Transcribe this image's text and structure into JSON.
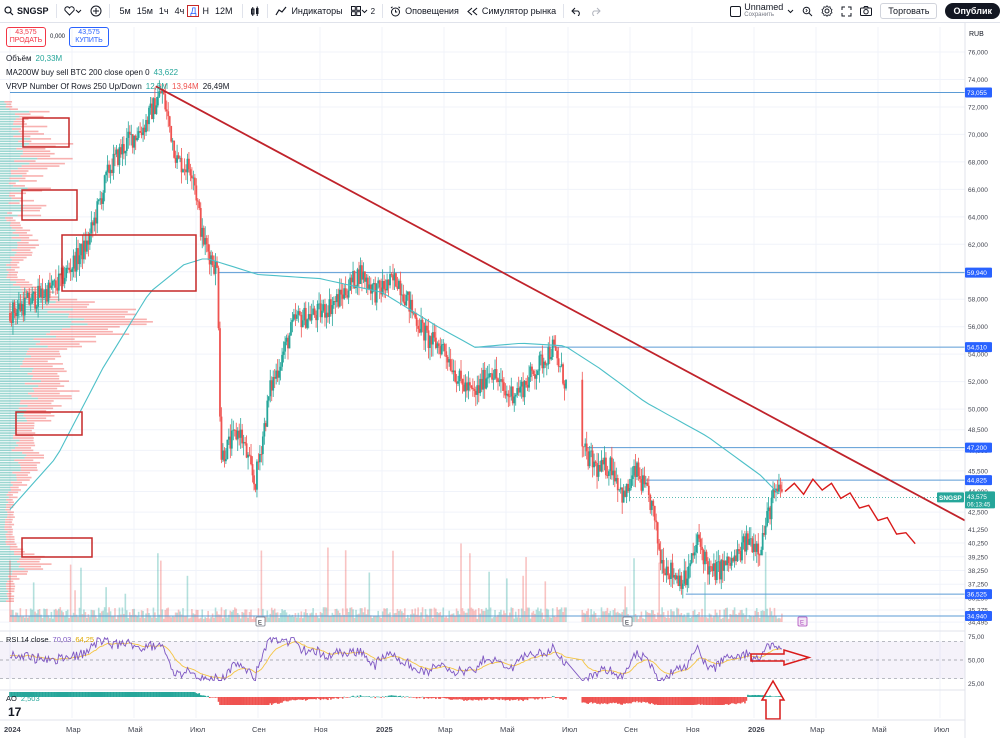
{
  "toolbar": {
    "symbol": "SNGSP",
    "intervals": [
      "5м",
      "15м",
      "1ч",
      "4ч",
      "Д",
      "Н",
      "12М"
    ],
    "active_interval": "Д",
    "indicators_label": "Индикаторы",
    "layouts_count": "2",
    "alerts_label": "Оповещения",
    "replay_label": "Симулятор рынка",
    "layout_name": "Unnamed",
    "saved_label": "Сохранить",
    "trade_label": "Торговать",
    "publish_label": "Опублик"
  },
  "quote": {
    "sell_price": "43,575",
    "sell_label": "ПРОДАТЬ",
    "spread": "0,000",
    "buy_price": "43,575",
    "buy_label": "КУПИТЬ"
  },
  "legends": {
    "volume": {
      "name": "Объём",
      "value": "20,33M"
    },
    "ma": {
      "name": "MA200W buy sell BTC 200 close open 0",
      "value": "43,622"
    },
    "vrvp": {
      "name": "VRVP Number Of Rows 250 Up/Down",
      "v1": "12,5M",
      "v2": "13,94M",
      "v3": "26,49M"
    },
    "rsi": {
      "name": "RSI 14 close",
      "v1": "70,03",
      "v2": "64,25"
    },
    "ao": {
      "name": "AO",
      "value": "2,503"
    }
  },
  "colors": {
    "up": "#26a69a",
    "down": "#ef5350",
    "ma": "#4dc0c8",
    "trend": "#c0232b",
    "level": "#5b9bd5",
    "rsi": "#7e57c2",
    "rsi_ma": "#f5c542",
    "badge": "#2962ff",
    "price_badge": "#26a69a"
  },
  "chart_data": {
    "type": "candlestick",
    "currency": "RUB",
    "x_ticks": [
      "2024",
      "Мар",
      "Май",
      "Июл",
      "Сен",
      "Ноя",
      "2025",
      "Мар",
      "Май",
      "Июл",
      "Сен",
      "Ноя",
      "2026",
      "Мар",
      "Май",
      "Июл"
    ],
    "y_ticks": [
      "76,000",
      "74,000",
      "72,000",
      "70,000",
      "68,000",
      "66,000",
      "64,000",
      "62,000",
      "60,000",
      "58,000",
      "56,000",
      "54,000",
      "52,000",
      "50,000",
      "48,500",
      "47,000",
      "45,500",
      "44,000",
      "42,500",
      "41,250",
      "40,250",
      "39,250",
      "38,250",
      "37,250",
      "36,250",
      "35,375",
      "34,495"
    ],
    "ylim": [
      34.5,
      76
    ],
    "price_path": [
      [
        0,
        57.0
      ],
      [
        1.5,
        59.0
      ],
      [
        2.5,
        62.0
      ],
      [
        3.2,
        67.5
      ],
      [
        3.8,
        69.5
      ],
      [
        4.3,
        70.5
      ],
      [
        4.9,
        73.2
      ],
      [
        5.4,
        68.0
      ],
      [
        5.9,
        67.5
      ],
      [
        6.2,
        62.5
      ],
      [
        6.7,
        60.0
      ],
      [
        6.8,
        46.5
      ],
      [
        7.4,
        48.5
      ],
      [
        7.9,
        44.5
      ],
      [
        8.4,
        51.5
      ],
      [
        9.2,
        56.5
      ],
      [
        10.0,
        57.0
      ],
      [
        10.6,
        58.0
      ],
      [
        11.3,
        60.0
      ],
      [
        11.8,
        58.5
      ],
      [
        12.5,
        59.5
      ],
      [
        13.0,
        57.0
      ],
      [
        13.5,
        55.0
      ],
      [
        14.0,
        54.5
      ],
      [
        14.5,
        52.0
      ],
      [
        15.0,
        51.0
      ],
      [
        15.5,
        53.0
      ],
      [
        16.0,
        51.0
      ],
      [
        16.5,
        51.5
      ],
      [
        17.0,
        53.0
      ],
      [
        17.5,
        54.5
      ],
      [
        17.9,
        52.0
      ],
      [
        18.2,
        50.5
      ],
      [
        18.4,
        52.0
      ],
      [
        18.45,
        47.0
      ],
      [
        19.0,
        45.5
      ],
      [
        19.4,
        46.0
      ],
      [
        19.8,
        43.5
      ],
      [
        20.2,
        45.5
      ],
      [
        20.7,
        43.0
      ],
      [
        21.0,
        39.0
      ],
      [
        21.4,
        38.0
      ],
      [
        21.8,
        37.5
      ],
      [
        22.2,
        40.5
      ],
      [
        22.6,
        38.0
      ],
      [
        23.0,
        38.5
      ],
      [
        23.4,
        39.0
      ],
      [
        23.8,
        40.5
      ],
      [
        24.2,
        40.0
      ],
      [
        24.6,
        43.5
      ],
      [
        24.9,
        44.2
      ]
    ],
    "ma200w_path": [
      [
        0,
        42.7
      ],
      [
        1.5,
        46.5
      ],
      [
        3.0,
        53.0
      ],
      [
        4.5,
        58.5
      ],
      [
        5.6,
        60.5
      ],
      [
        6.3,
        61.0
      ],
      [
        8.0,
        59.8
      ],
      [
        10.0,
        59.5
      ],
      [
        12.0,
        58.5
      ],
      [
        13.8,
        56.0
      ],
      [
        15.0,
        54.5
      ],
      [
        16.5,
        54.8
      ],
      [
        17.9,
        54.6
      ],
      [
        19.0,
        53.0
      ],
      [
        20.5,
        50.5
      ],
      [
        22.5,
        48.0
      ],
      [
        24.2,
        45.2
      ],
      [
        24.9,
        43.6
      ]
    ],
    "trendline": [
      [
        4.7,
        73.5
      ],
      [
        32.2,
        40.2
      ]
    ],
    "forecast_path": [
      [
        25.0,
        44.0
      ],
      [
        25.3,
        44.6
      ],
      [
        25.6,
        43.8
      ],
      [
        25.9,
        44.9
      ],
      [
        26.2,
        44.1
      ],
      [
        26.5,
        44.6
      ],
      [
        26.8,
        43.5
      ],
      [
        27.1,
        43.9
      ],
      [
        27.4,
        42.8
      ],
      [
        27.7,
        43.0
      ],
      [
        28.0,
        41.9
      ],
      [
        28.3,
        42.1
      ],
      [
        28.6,
        40.9
      ],
      [
        28.9,
        41.0
      ],
      [
        29.2,
        40.2
      ]
    ],
    "levels": [
      {
        "price": 73.055,
        "label": "73,055",
        "from": 0
      },
      {
        "price": 59.94,
        "label": "59,940",
        "from": 6.7
      },
      {
        "price": 54.51,
        "label": "54,510",
        "from": 15.0
      },
      {
        "price": 47.2,
        "label": "47,200",
        "from": 18.6
      },
      {
        "price": 44.825,
        "label": "44,825",
        "from": 20.5
      },
      {
        "price": 36.525,
        "label": "36,525",
        "from": 21.8
      },
      {
        "price": 34.94,
        "label": "34,940",
        "from": 0
      }
    ],
    "current_price": {
      "price": 43.575,
      "label": "43,575",
      "symbol": "SNGSP",
      "timer": "06:13:45"
    },
    "rsi": {
      "y_ticks": [
        "75,00",
        "50,00",
        "25,00"
      ],
      "upper": 70,
      "lower": 30,
      "last": 70.03,
      "ma_last": 64.25
    }
  }
}
